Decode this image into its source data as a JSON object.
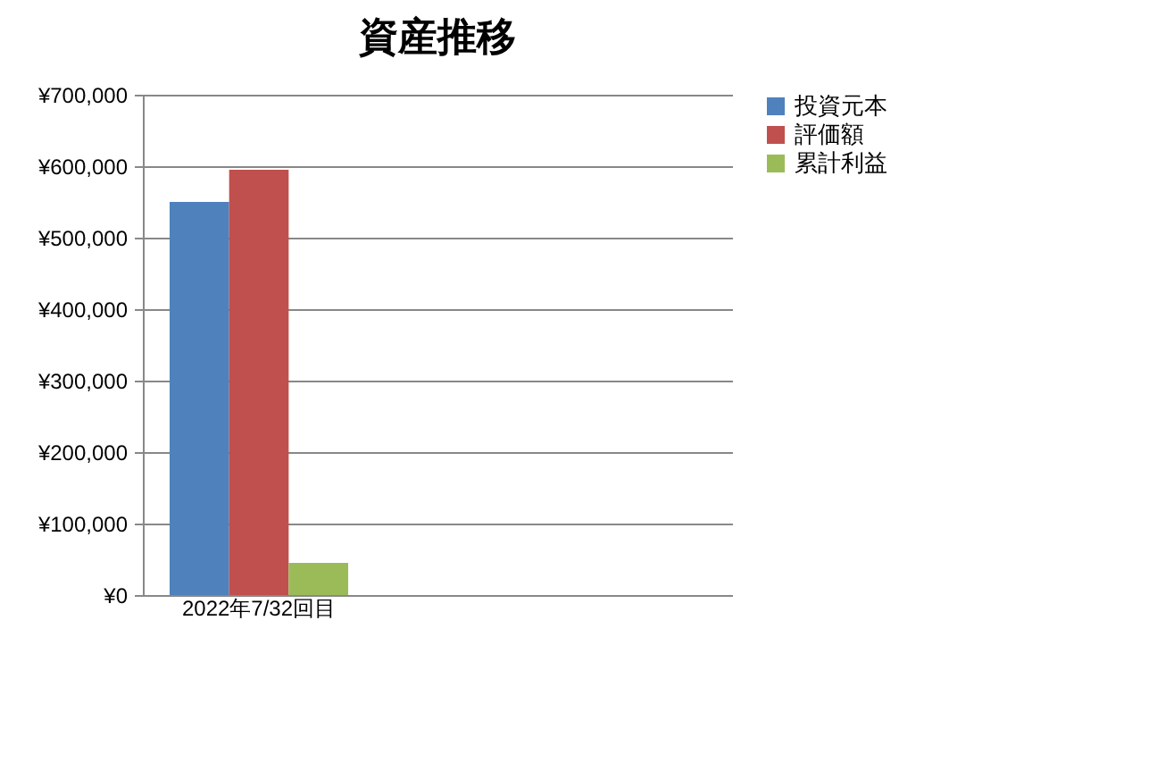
{
  "chart_data": {
    "type": "bar",
    "title": "資産推移",
    "categories": [
      "2022年7/32回目",
      null,
      null
    ],
    "series": [
      {
        "name": "投資元本",
        "color": "#4f81bd",
        "values": [
          550000,
          null,
          null
        ]
      },
      {
        "name": "評価額",
        "color": "#c0504d",
        "values": [
          595000,
          null,
          null
        ]
      },
      {
        "name": "累計利益",
        "color": "#9bbb59",
        "values": [
          45000,
          null,
          null
        ]
      }
    ],
    "ylim": [
      0,
      700000
    ],
    "yticks": [
      {
        "value": 0,
        "label": "¥0"
      },
      {
        "value": 100000,
        "label": "¥100,000"
      },
      {
        "value": 200000,
        "label": "¥200,000"
      },
      {
        "value": 300000,
        "label": "¥300,000"
      },
      {
        "value": 400000,
        "label": "¥400,000"
      },
      {
        "value": 500000,
        "label": "¥500,000"
      },
      {
        "value": 600000,
        "label": "¥600,000"
      },
      {
        "value": 700000,
        "label": "¥700,000"
      }
    ],
    "grid": "y",
    "legend": "right"
  }
}
